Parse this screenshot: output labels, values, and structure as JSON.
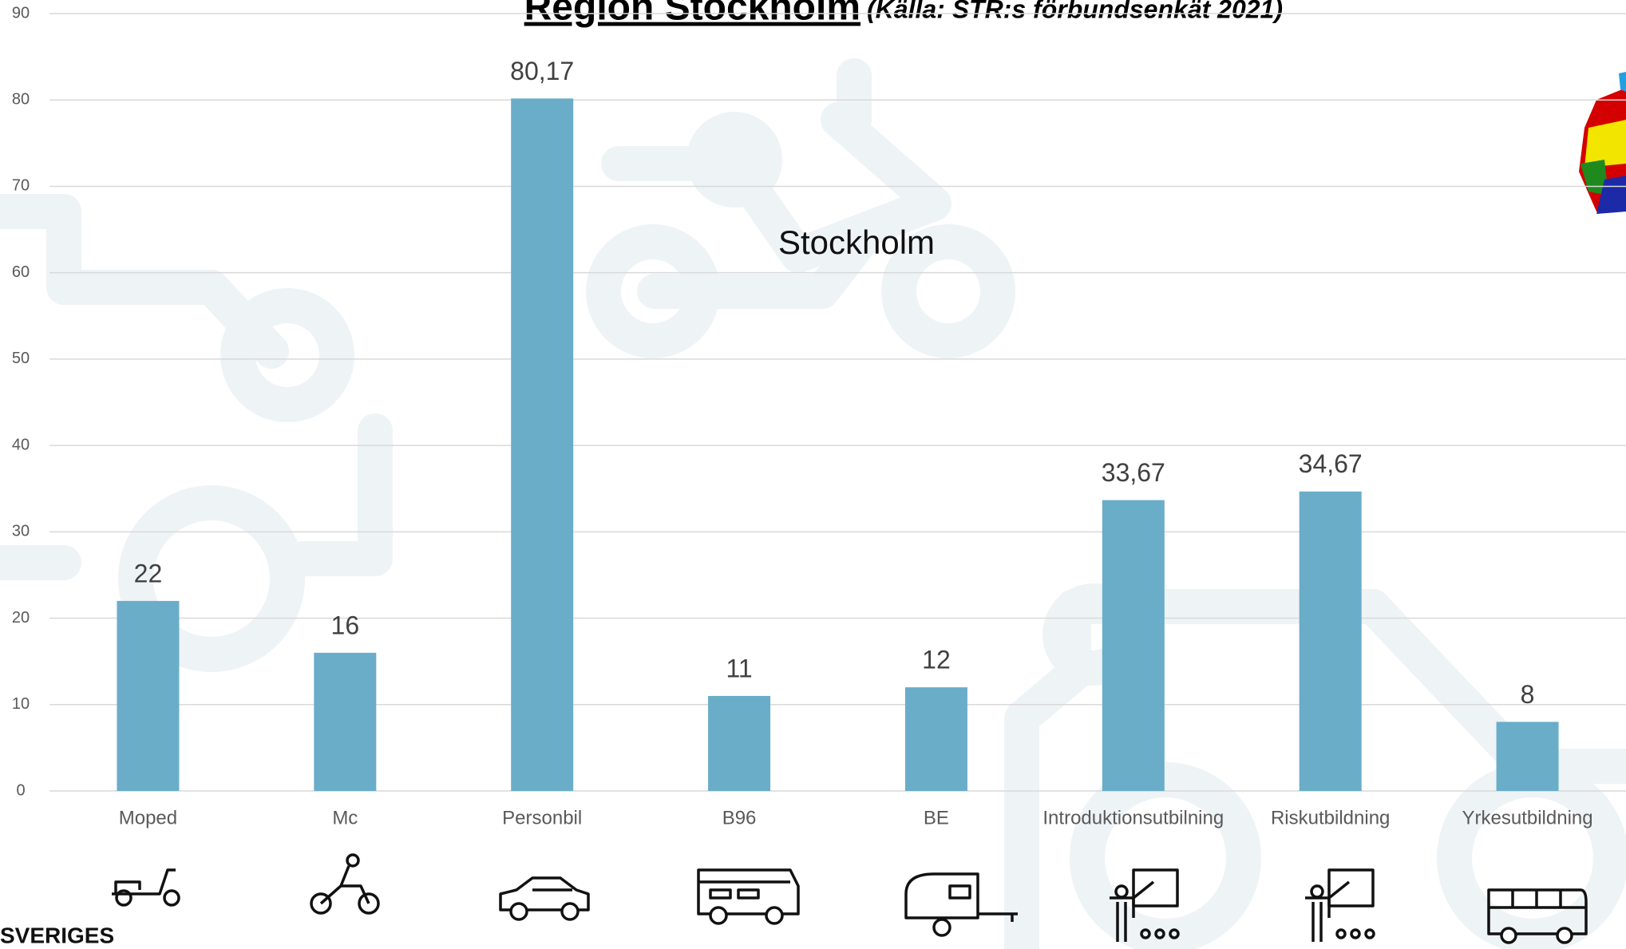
{
  "chart_data": {
    "type": "bar",
    "title": "Region Stockholm",
    "subtitle": "(Källa: STR:s förbundsenkät 2021)",
    "annotation": "Stockholm",
    "footer": "SVERIGES",
    "categories": [
      "Moped",
      "Mc",
      "Personbil",
      "B96",
      "BE",
      "Introduktionsutbilning",
      "Riskutbildning",
      "Yrkesutbildning"
    ],
    "values": [
      22,
      16,
      80.17,
      11,
      12,
      33.67,
      34.67,
      8
    ],
    "value_labels": [
      "22",
      "16",
      "80,17",
      "11",
      "12",
      "33,67",
      "34,67",
      "8"
    ],
    "color": "#6aadc8",
    "ylim": [
      0,
      90
    ],
    "yticks": [
      0,
      10,
      20,
      30,
      40,
      50,
      60,
      70,
      80,
      90
    ],
    "grid": true
  }
}
